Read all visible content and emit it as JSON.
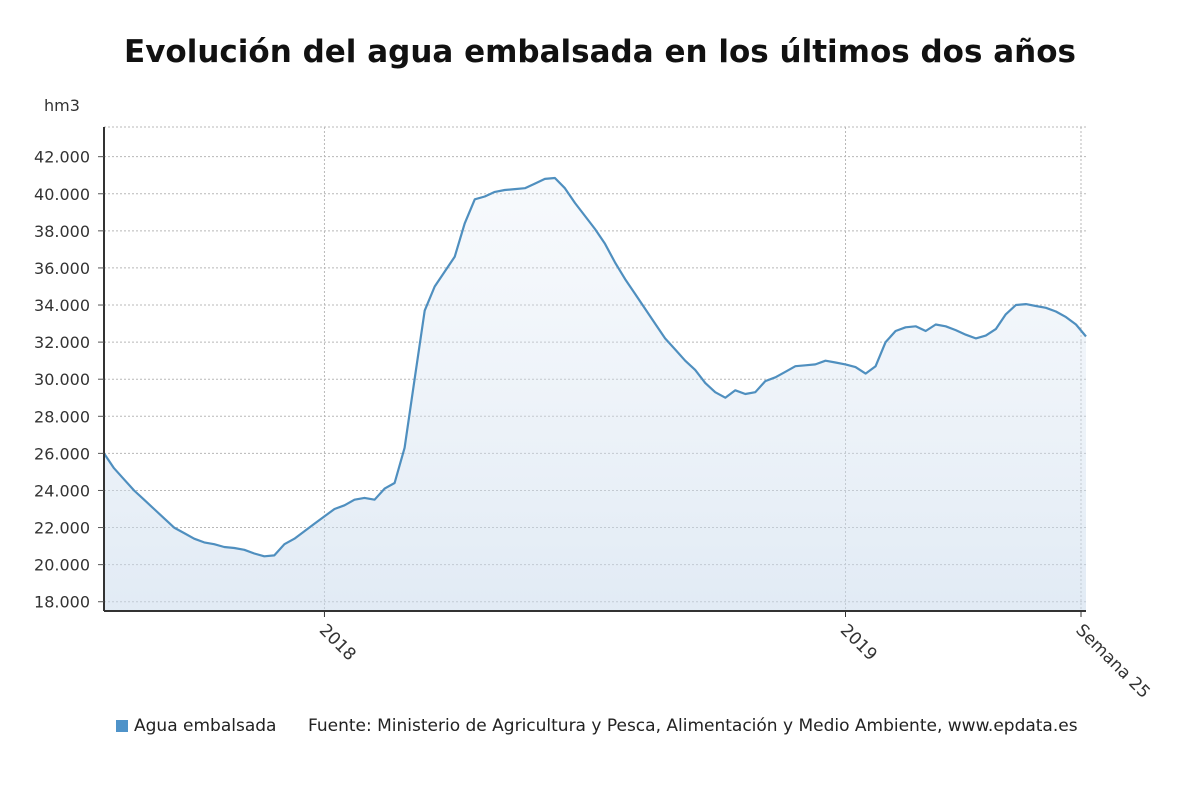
{
  "chart_data": {
    "type": "area",
    "title": "Evolución del agua embalsada en los últimos dos años",
    "ylabel": "hm3",
    "xlabel": "",
    "ylim": [
      17500,
      43600
    ],
    "yticks": [
      18000,
      20000,
      22000,
      24000,
      26000,
      28000,
      30000,
      32000,
      34000,
      36000,
      38000,
      40000,
      42000
    ],
    "ytick_labels": [
      "18.000",
      "20.000",
      "22.000",
      "24.000",
      "26.000",
      "28.000",
      "30.000",
      "32.000",
      "34.000",
      "36.000",
      "38.000",
      "40.000",
      "42.000"
    ],
    "xticks": [
      {
        "label": "2018",
        "week": 22
      },
      {
        "label": "2019",
        "week": 74
      },
      {
        "label": "Semana 25",
        "week": 97.5
      }
    ],
    "grid": true,
    "series": [
      {
        "name": "Agua embalsada",
        "color": "#4f8fbf",
        "x": [
          0,
          1,
          2,
          3,
          4,
          5,
          6,
          7,
          8,
          9,
          10,
          11,
          12,
          13,
          14,
          15,
          16,
          17,
          18,
          19,
          20,
          21,
          22,
          23,
          24,
          25,
          26,
          27,
          28,
          29,
          30,
          31,
          32,
          33,
          34,
          35,
          36,
          37,
          38,
          39,
          40,
          41,
          42,
          43,
          44,
          45,
          46,
          47,
          48,
          49,
          50,
          51,
          52,
          53,
          54,
          55,
          56,
          57,
          58,
          59,
          60,
          61,
          62,
          63,
          64,
          65,
          66,
          67,
          68,
          69,
          70,
          71,
          72,
          73,
          74,
          75,
          76,
          77,
          78,
          79,
          80,
          81,
          82,
          83,
          84,
          85,
          86,
          87,
          88,
          89,
          90,
          91,
          92,
          93,
          94,
          95,
          96,
          97,
          98
        ],
        "values": [
          26000,
          25200,
          24600,
          24000,
          23500,
          23000,
          22500,
          22000,
          21700,
          21400,
          21200,
          21100,
          20950,
          20900,
          20800,
          20600,
          20450,
          20500,
          21100,
          21400,
          21800,
          22200,
          22600,
          23000,
          23200,
          23500,
          23600,
          23500,
          24100,
          24400,
          26300,
          30000,
          33700,
          35000,
          35800,
          36600,
          38400,
          39700,
          39850,
          40100,
          40200,
          40250,
          40300,
          40550,
          40800,
          40850,
          40300,
          39500,
          38800,
          38100,
          37300,
          36300,
          35400,
          34600,
          33800,
          33000,
          32200,
          31600,
          31000,
          30500,
          29800,
          29300,
          29000,
          29400,
          29200,
          29300,
          29900,
          30100,
          30400,
          30700,
          30750,
          30800,
          31000,
          30900,
          30800,
          30650,
          30300,
          30700,
          32000,
          32600,
          32800,
          32850,
          32600,
          32950,
          32850,
          32650,
          32400,
          32200,
          32350,
          32700,
          33500,
          34000,
          34050,
          33950,
          33850,
          33650,
          33350,
          32950,
          32300
        ]
      }
    ]
  },
  "legend": {
    "label": "Agua embalsada",
    "color": "#4f93c9"
  },
  "source_text": "Fuente: Ministerio de Agricultura y Pesca, Alimentación y Medio Ambiente, www.epdata.es"
}
